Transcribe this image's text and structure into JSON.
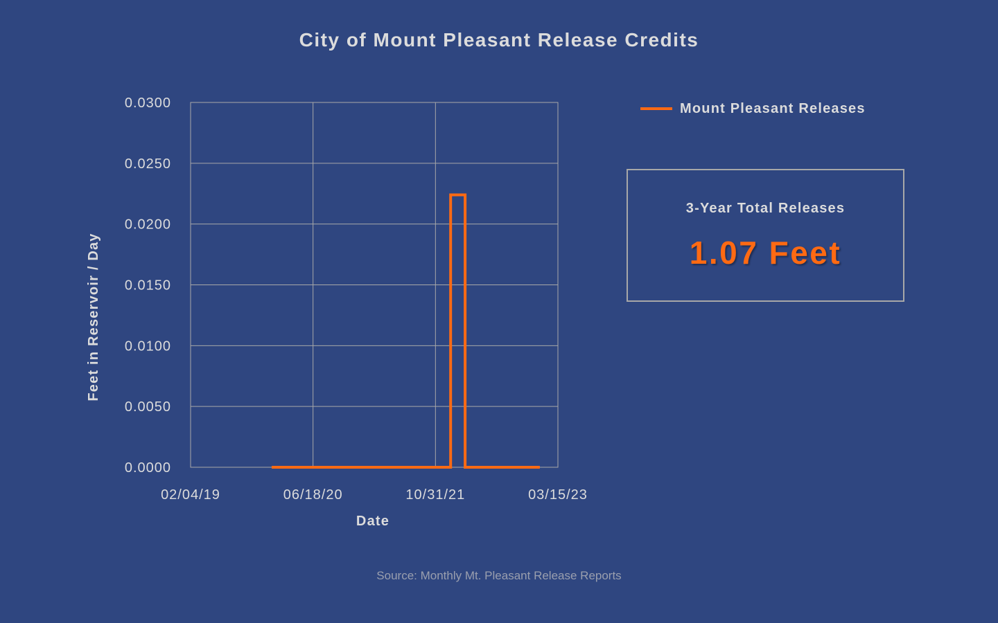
{
  "title": "City of Mount Pleasant Release Credits",
  "legend": {
    "label": "Mount Pleasant Releases",
    "color": "#ff6a13"
  },
  "summary": {
    "label": "3-Year Total Releases",
    "value": "1.07 Feet",
    "color": "#ff6a13"
  },
  "source": "Source: Monthly Mt. Pleasant Release Reports",
  "colors": {
    "background": "#2f4680",
    "grid": "#a8a8a8",
    "text": "#dcdcdc",
    "series": "#ff6a13"
  },
  "chart_data": {
    "type": "line",
    "title": "City of Mount Pleasant Release Credits",
    "xlabel": "Date",
    "ylabel": "Feet in Reservoir / Day",
    "x_type": "date",
    "xlim": [
      "2019-02-04",
      "2023-03-15"
    ],
    "ylim": [
      0,
      0.03
    ],
    "x_ticks": [
      {
        "date": "2019-02-04",
        "label": "02/04/19"
      },
      {
        "date": "2020-06-18",
        "label": "06/18/20"
      },
      {
        "date": "2021-10-31",
        "label": "10/31/21"
      },
      {
        "date": "2023-03-15",
        "label": "03/15/23"
      }
    ],
    "y_ticks": [
      {
        "value": 0,
        "label": "0.0000"
      },
      {
        "value": 0.005,
        "label": "0.0050"
      },
      {
        "value": 0.01,
        "label": "0.0100"
      },
      {
        "value": 0.015,
        "label": "0.0150"
      },
      {
        "value": 0.02,
        "label": "0.0200"
      },
      {
        "value": 0.025,
        "label": "0.0250"
      },
      {
        "value": 0.03,
        "label": "0.0300"
      }
    ],
    "grid": true,
    "legend_position": "top-right",
    "series": [
      {
        "name": "Mount Pleasant Releases",
        "color": "#ff6a13",
        "step": true,
        "points": [
          {
            "x": "2020-01-01",
            "y": 0
          },
          {
            "x": "2022-01-01",
            "y": 0
          },
          {
            "x": "2022-01-01",
            "y": 0.0224
          },
          {
            "x": "2022-03-01",
            "y": 0.0224
          },
          {
            "x": "2022-03-01",
            "y": 0
          },
          {
            "x": "2022-12-31",
            "y": 0
          }
        ]
      }
    ]
  }
}
